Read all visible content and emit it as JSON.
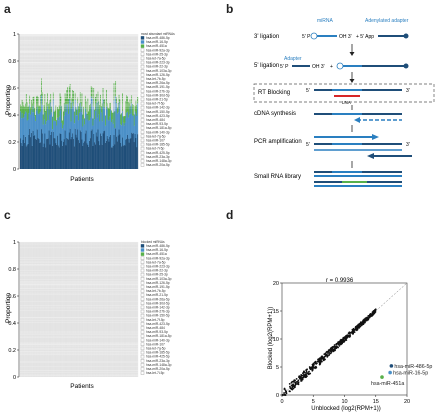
{
  "panels": {
    "a": "a",
    "b": "b",
    "c": "c",
    "d": "d"
  },
  "chart_data": [
    {
      "id": "a",
      "type": "bar",
      "subtype": "stacked-100",
      "xlabel": "Patients",
      "ylabel": "Proportion",
      "ylim": [
        0,
        1
      ],
      "yticks": [
        "0",
        "0.2",
        "0.4",
        "0.6",
        "0.8",
        "1"
      ],
      "legend_title": "most abundant miRNAs",
      "legend_position": "right",
      "legend": [
        "hsa-miR-486-5p",
        "hsa-miR-16-5p",
        "hsa-miR-451a",
        "hsa-miR-92a-3p",
        "hsa-miR-25-3p",
        "hsa-let-7a-5p",
        "hsa-miR-223-3p",
        "hsa-miR-22-3p",
        "hsa-miR-103a-3p",
        "hsa-miR-126-5p",
        "hsa-let-7b-5p",
        "hsa-miR-26a-5p",
        "hsa-miR-191-5p",
        "hsa-miR-27b-3p",
        "hsa-miR-30d-5p",
        "hsa-miR-21-5p",
        "hsa-let-7f-5p",
        "hsa-miR-142-3p",
        "hsa-miR-150-5p",
        "hsa-miR-423-5p",
        "hsa-miR-484",
        "hsa-miR-93-5p",
        "hsa-miR-181a-5p",
        "hsa-miR-140-3p",
        "hsa-let-7g-5p",
        "hsa-miR-107",
        "hsa-miR-185-5p",
        "hsa-let-7i-5p",
        "hsa-miR-425-5p",
        "hsa-miR-23a-3p",
        "hsa-miR-148a-3p",
        "hsa-miR-20a-5p"
      ],
      "series_colors": [
        "#1f4e79",
        "#4a90c8",
        "#58b04b"
      ],
      "series_values_summary": {
        "hsa-miR-486-5p": 0.22,
        "hsa-miR-16-5p": 0.2,
        "hsa-miR-451a": 0.08,
        "others": 0.5
      },
      "n_patients": 140
    },
    {
      "id": "c",
      "type": "bar",
      "subtype": "stacked-100",
      "xlabel": "Patients",
      "ylabel": "Proportion",
      "ylim": [
        0,
        1
      ],
      "yticks": [
        "0",
        "0.2",
        "0.4",
        "0.6",
        "0.8",
        "1"
      ],
      "legend_title": "blocked miRNAs",
      "legend_position": "right",
      "legend": [
        "hsa-miR-486-5p",
        "hsa-miR-16-5p",
        "hsa-miR-451a",
        "hsa-miR-92a-3p",
        "hsa-let-7a-5p",
        "hsa-miR-223-3p",
        "hsa-miR-22-3p",
        "hsa-miR-25-3p",
        "hsa-miR-103a-3p",
        "hsa-miR-126-5p",
        "hsa-miR-191-5p",
        "hsa-let-7b-5p",
        "hsa-miR-21-5p",
        "hsa-miR-26a-5p",
        "hsa-miR-30d-5p",
        "hsa-miR-142-3p",
        "hsa-miR-27b-3p",
        "hsa-miR-150-5p",
        "hsa-let-7f-5p",
        "hsa-miR-423-5p",
        "hsa-miR-484",
        "hsa-miR-93-5p",
        "hsa-miR-181a-5p",
        "hsa-miR-140-3p",
        "hsa-miR-107",
        "hsa-let-7g-5p",
        "hsa-miR-185-5p",
        "hsa-miR-425-5p",
        "hsa-miR-23a-3p",
        "hsa-miR-148a-3p",
        "hsa-miR-20a-5p",
        "hsa-let-7i-5p"
      ],
      "series_colors": [
        "#1f4e79",
        "#4a90c8",
        "#58b04b"
      ],
      "n_patients": 140
    },
    {
      "id": "d",
      "type": "scatter",
      "xlabel": "Unblocked (log2(RPM+1))",
      "ylabel": "Blocked (log2(RPM+1))",
      "xlim": [
        0,
        20
      ],
      "ylim": [
        0,
        20
      ],
      "xticks": [
        "0",
        "5",
        "10",
        "15",
        "20"
      ],
      "yticks": [
        "0",
        "5",
        "10",
        "15",
        "20"
      ],
      "annotation": "r = 0.9936",
      "highlight": [
        {
          "name": "hsa-miR-486-5p",
          "x": 17.5,
          "y": 5.2,
          "color": "#1f4e79"
        },
        {
          "name": "hsa-miR-16-5p",
          "x": 17.3,
          "y": 4.0,
          "color": "#4a90c8"
        },
        {
          "name": "hsa-miR-451a",
          "x": 16.0,
          "y": 3.2,
          "color": "#58b04b"
        }
      ]
    }
  ],
  "diagram": {
    "steps": [
      "3' ligation",
      "5' ligation",
      "RT Blocking",
      "cDNA synthesis",
      "PCR amplification",
      "Small RNA library"
    ],
    "labels": {
      "mirna": "miRNA",
      "adenylated_adapter": "Adenylated adapter",
      "oh3": "OH 3'",
      "p5": "5' P",
      "app": "+ 5' App",
      "adapter": "Adapter",
      "lna": "LNA",
      "five": "5'",
      "three": "3'"
    }
  }
}
